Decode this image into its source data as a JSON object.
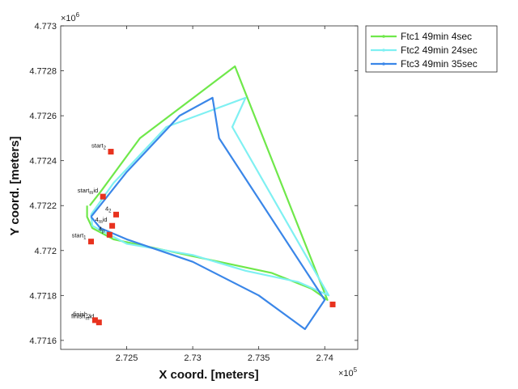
{
  "chart_data": {
    "type": "line",
    "xlabel": "X coord. [meters]",
    "ylabel": "Y coord. [meters]",
    "x_multiplier": "×10",
    "x_exponent": "5",
    "y_multiplier": "×10",
    "y_exponent": "6",
    "xlim": [
      272000,
      274250
    ],
    "ylim": [
      4771560,
      4773000
    ],
    "xticks": [
      {
        "value": 272500,
        "label": "2.725"
      },
      {
        "value": 273000,
        "label": "2.73"
      },
      {
        "value": 273500,
        "label": "2.735"
      },
      {
        "value": 274000,
        "label": "2.74"
      }
    ],
    "yticks": [
      {
        "value": 4771600,
        "label": "4.7716"
      },
      {
        "value": 4771800,
        "label": "4.7718"
      },
      {
        "value": 4772000,
        "label": "4.772"
      },
      {
        "value": 4772200,
        "label": "4.7722"
      },
      {
        "value": 4772400,
        "label": "4.7724"
      },
      {
        "value": 4772600,
        "label": "4.7726"
      },
      {
        "value": 4772800,
        "label": "4.7728"
      },
      {
        "value": 4773000,
        "label": "4.773"
      }
    ],
    "grid": false,
    "legend_position": "outside-top-right",
    "series": [
      {
        "name": "Ftc1 49min 4sec",
        "color": "#6fe84a",
        "x": [
          272220,
          272300,
          272600,
          273320,
          273400,
          274020,
          273900,
          273600,
          273200,
          272800,
          272400,
          272240,
          272200,
          272200
        ],
        "y": [
          4772200,
          4772260,
          4772500,
          4772820,
          4772700,
          4771780,
          4771830,
          4771900,
          4771950,
          4772000,
          4772050,
          4772100,
          4772150,
          4772200
        ]
      },
      {
        "name": "Ftc2 49min 24sec",
        "color": "#7ff0f2",
        "x": [
          272230,
          272400,
          272800,
          273400,
          273300,
          274030,
          273800,
          273400,
          273000,
          272500,
          272240,
          272230
        ],
        "y": [
          4772160,
          4772300,
          4772550,
          4772680,
          4772550,
          4771800,
          4771860,
          4771910,
          4771980,
          4772030,
          4772110,
          4772160
        ]
      },
      {
        "name": "Ftc3 49min 35sec",
        "color": "#3a86e8",
        "x": [
          272230,
          272500,
          272900,
          273150,
          273200,
          274000,
          273850,
          273500,
          273000,
          272500,
          272300,
          272230
        ],
        "y": [
          4772150,
          4772350,
          4772600,
          4772680,
          4772500,
          4771780,
          4771650,
          4771800,
          4771950,
          4772050,
          4772100,
          4772150
        ]
      }
    ],
    "markers": [
      {
        "label_main": "start",
        "label_sub": "2",
        "x": 272380,
        "y": 4772440
      },
      {
        "label_main": "start",
        "label_sub": "m",
        "label_extra": "id",
        "x": 272320,
        "y": 4772240
      },
      {
        "label_main": "4",
        "label_sub": "2",
        "x": 272420,
        "y": 4772160
      },
      {
        "label_main": "4",
        "label_sub": "m",
        "label_extra": "id",
        "x": 272390,
        "y": 4772110
      },
      {
        "label_main": "4",
        "label_sub": "p",
        "x": 272370,
        "y": 4772070
      },
      {
        "label_main": "start",
        "label_sub": "1",
        "x": 272230,
        "y": 4772040
      },
      {
        "label_main": "finish",
        "label_sub": "m",
        "label_extra": "id",
        "x": 272290,
        "y": 4771680
      },
      {
        "label_main": "finish",
        "label_sub": "2",
        "x": 272260,
        "y": 4771690
      },
      {
        "label_main": "",
        "label_sub": "",
        "x": 274060,
        "y": 4771760
      }
    ]
  }
}
